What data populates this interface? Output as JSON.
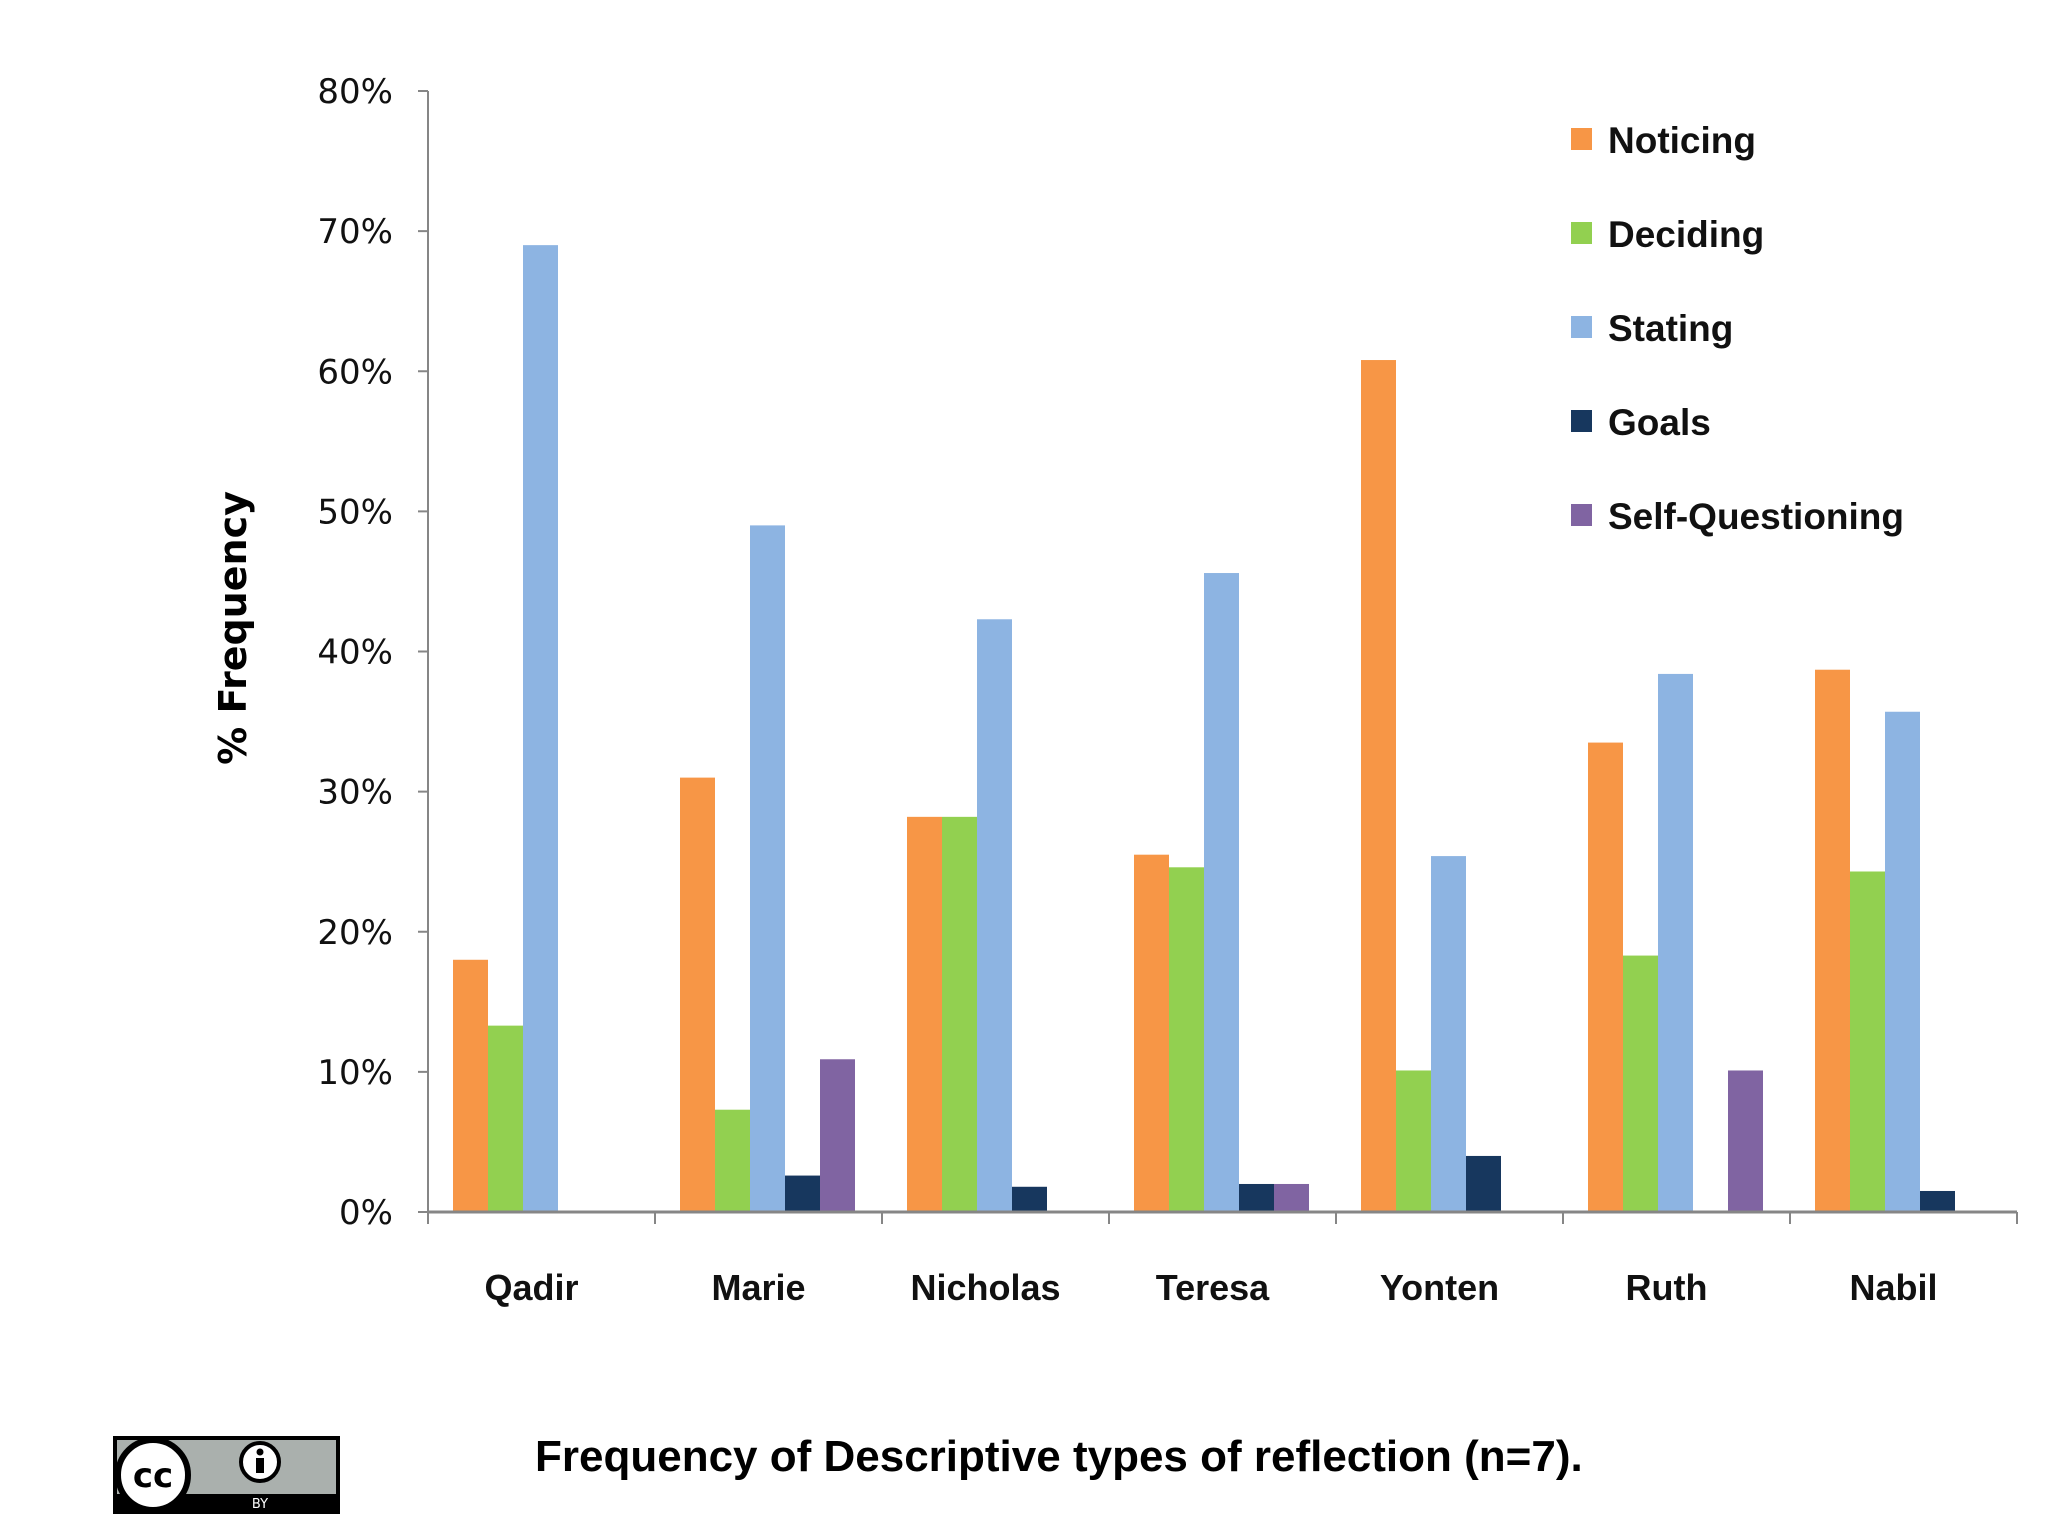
{
  "chart_data": {
    "type": "bar",
    "title": "Frequency of Descriptive types of reflection (n=7).",
    "xlabel": "",
    "ylabel": "% Frequency",
    "ylim": [
      0,
      80
    ],
    "yticks": [
      "0%",
      "10%",
      "20%",
      "30%",
      "40%",
      "50%",
      "60%",
      "70%",
      "80%"
    ],
    "categories": [
      "Qadir",
      "Marie",
      "Nicholas",
      "Teresa",
      "Yonten",
      "Ruth",
      "Nabil"
    ],
    "series": [
      {
        "name": "Noticing",
        "color": "#F79646",
        "values": [
          18,
          31,
          28.2,
          25.5,
          60.8,
          33.5,
          38.7
        ]
      },
      {
        "name": "Deciding",
        "color": "#92D050",
        "values": [
          13.3,
          7.3,
          28.2,
          24.6,
          10.1,
          18.3,
          24.3
        ]
      },
      {
        "name": "Stating",
        "color": "#8DB4E2",
        "values": [
          69,
          49,
          42.3,
          45.6,
          25.4,
          38.4,
          35.7
        ]
      },
      {
        "name": "Goals",
        "color": "#17375E",
        "values": [
          0,
          2.6,
          1.8,
          2.0,
          4.0,
          0,
          1.5
        ]
      },
      {
        "name": "Self-Questioning",
        "color": "#8064A2",
        "values": [
          0,
          10.9,
          0,
          2.0,
          0,
          10.1,
          0
        ]
      }
    ],
    "legend_position": "top-right",
    "grid": false
  },
  "license_badge": {
    "symbol": "cc",
    "label": "BY",
    "icon": "attribution-person-icon"
  }
}
